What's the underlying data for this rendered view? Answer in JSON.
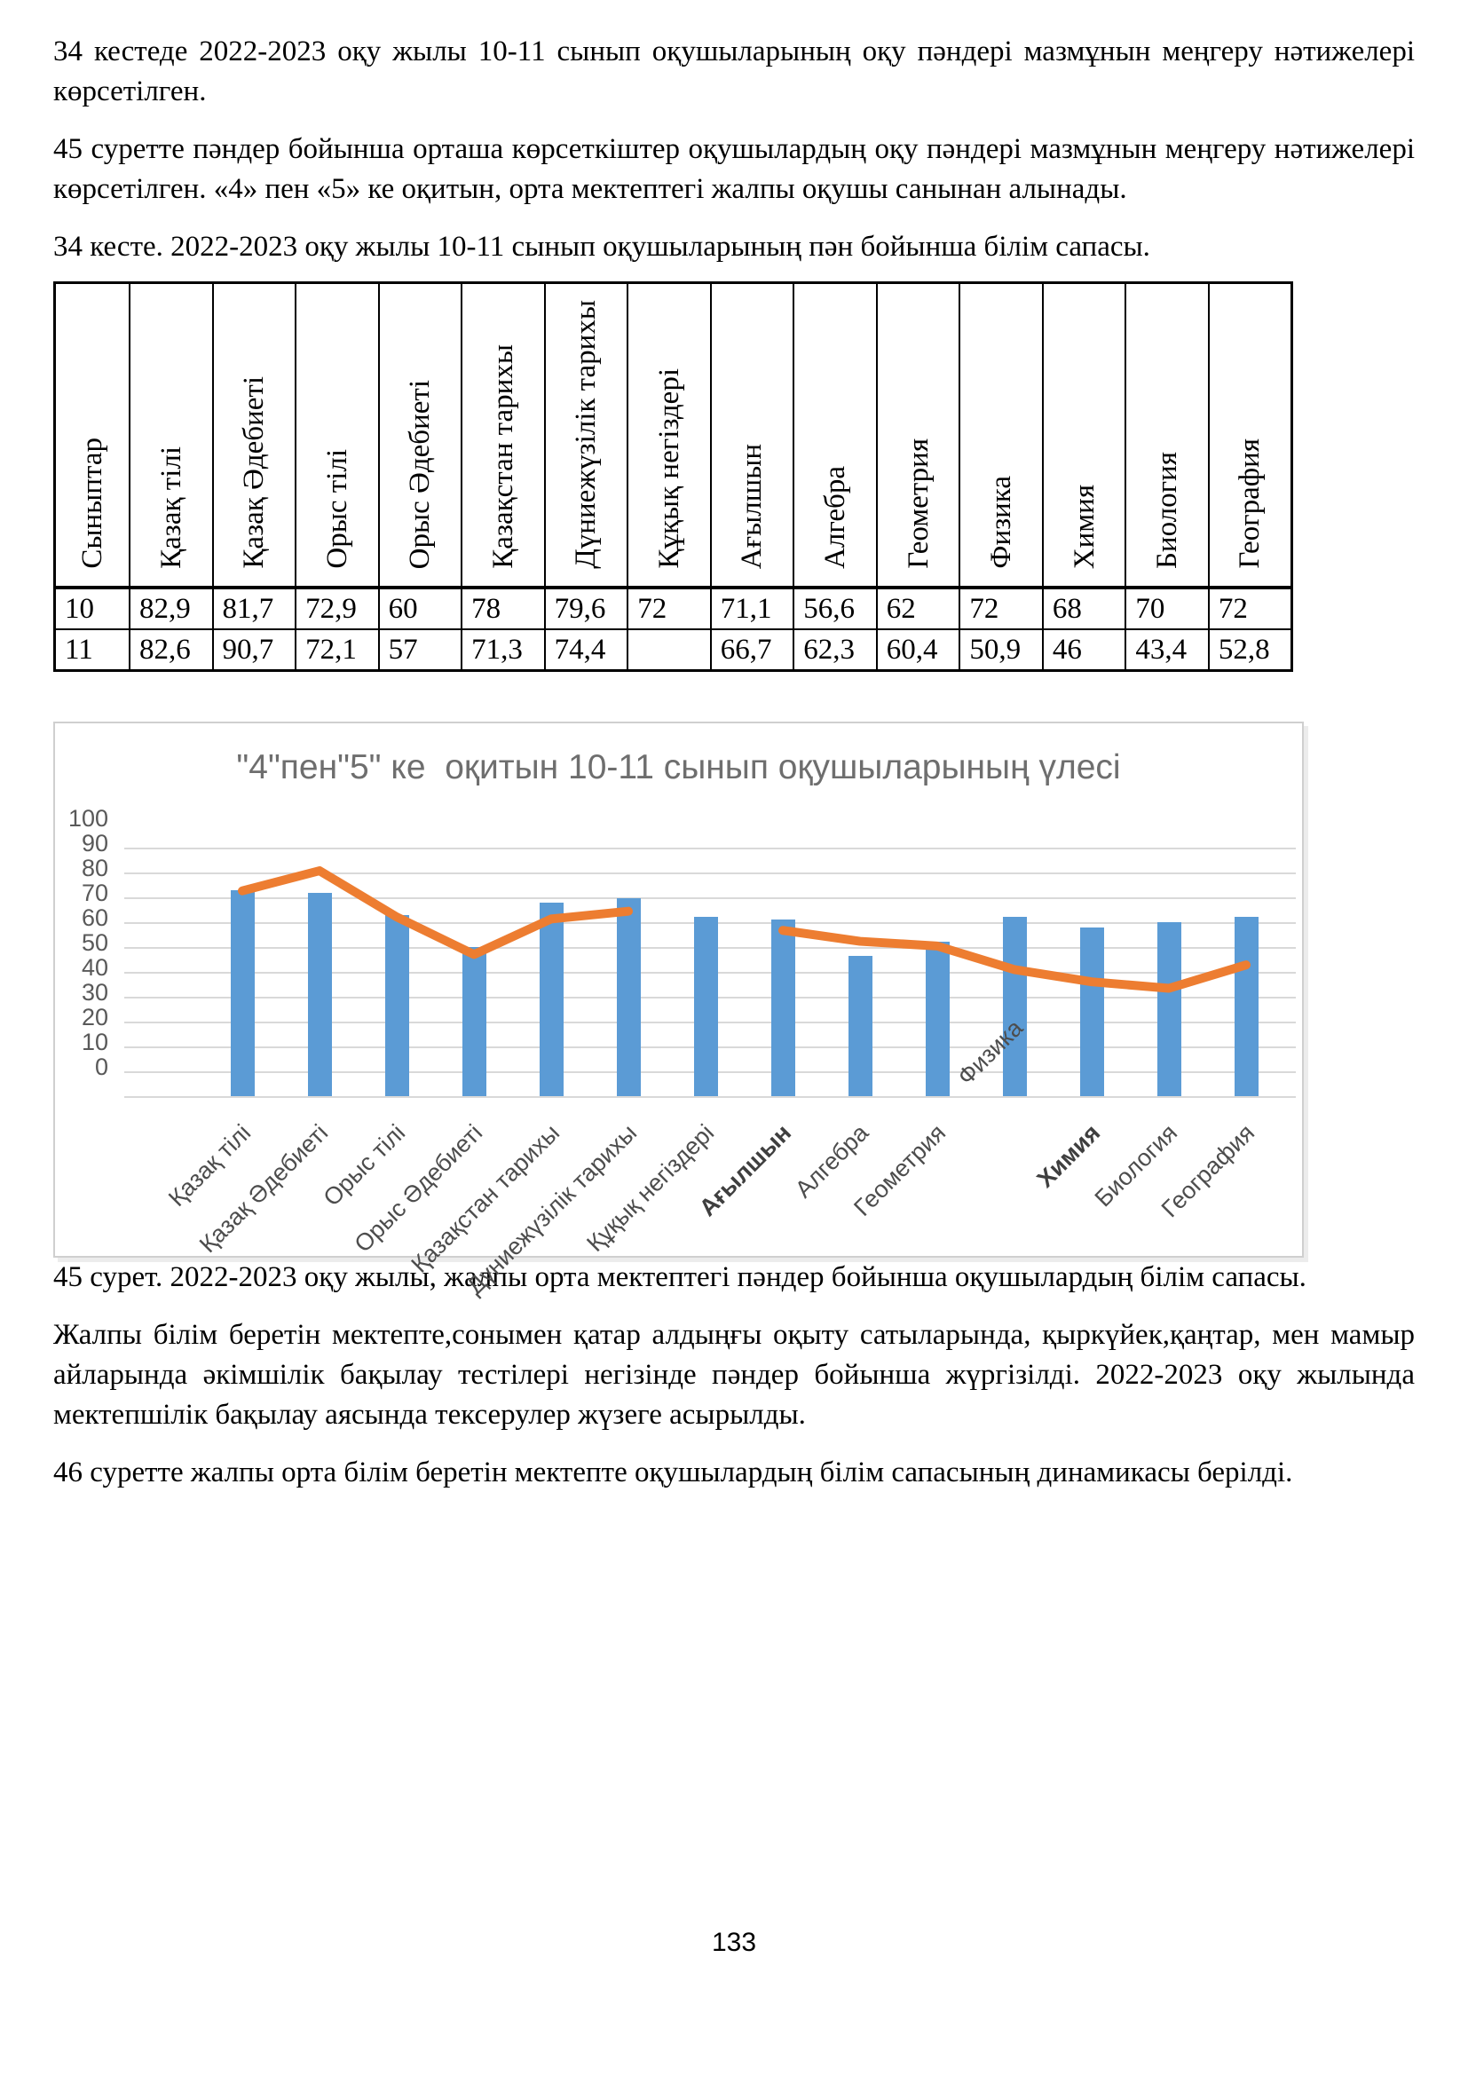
{
  "page": {
    "paragraphs": {
      "intro1": "34 кестеде 2022-2023 оқу жылы 10-11 сынып оқушыларының оқу пәндері мазмұнын меңгеру нәтижелері көрсетілген.",
      "intro2": "45 суретте пәндер бойынша орташа көрсеткіштер оқушылардың оқу пәндері мазмұнын меңгеру нәтижелері көрсетілген. «4» пен «5» ке оқитын, орта мектептегі жалпы оқушы санынан алынады.",
      "table_caption": "34 кесте. 2022-2023 оқу жылы 10-11 сынып оқушыларының пән бойынша білім сапасы.",
      "figure_caption": "45 сурет. 2022-2023 оқу жылы, жалпы орта мектептегі пәндер бойынша оқушылардың білім сапасы.",
      "body2": "Жалпы білім беретін мектепте,сонымен қатар алдыңғы оқыту сатыларында, қыркүйек,қаңтар, мен мамыр айларында әкімшілік бақылау тестілері негізінде пәндер бойынша жүргізілді. 2022-2023 оқу жылында мектепшілік бақылау аясында тексерулер жүзеге асырылды.",
      "body3": "46 суретте жалпы орта білім беретін мектепте оқушылардың білім сапасының динамикасы берілді."
    },
    "page_number": "133"
  },
  "table": {
    "headers": [
      "Сыныптар",
      "Қазақ тілі",
      "Қазақ Әдебиеті",
      "Орыс тілі",
      "Орыс Әдебиеті",
      "Қазақстан тарихы",
      "Дүниежүзілік тарихы",
      "Құқық негіздері",
      "Ағылшын",
      "Алгебра",
      "Геометрия",
      "Физика",
      "Химия",
      "Биология",
      "География"
    ],
    "rows": [
      [
        "10",
        "82,9",
        "81,7",
        "72,9",
        "60",
        "78",
        "79,6",
        "72",
        "71,1",
        "56,6",
        "62",
        "72",
        "68",
        "70",
        "72"
      ],
      [
        "11",
        "82,6",
        "90,7",
        "72,1",
        "57",
        "71,3",
        "74,4",
        "",
        "66,7",
        "62,3",
        "60,4",
        "50,9",
        "46",
        "43,4",
        "52,8"
      ]
    ]
  },
  "chart_data": {
    "type": "bar",
    "title": "\"4\"пен\"5\" ке  оқитын 10-11 сынып оқушыларының үлесі",
    "categories": [
      "Қазақ тілі",
      "Қазақ Әдебиеті",
      "Орыс тілі",
      "Орыс Әдебиеті",
      "Қазақстан тарихы",
      "Дүниежүзілік тарихы",
      "Құқық негіздері",
      "Ағылшын",
      "Алгебра",
      "Геометрия",
      "Физика",
      "Химия",
      "Биология",
      "География"
    ],
    "series": [
      {
        "type": "bar",
        "color": "#5B9BD5",
        "values": [
          82.9,
          81.7,
          72.9,
          60,
          78,
          79.6,
          72,
          71.1,
          56.6,
          62,
          72,
          68,
          70,
          72
        ]
      },
      {
        "type": "line",
        "color": "#ED7D31",
        "values": [
          82.6,
          90.7,
          72.1,
          57,
          71.3,
          74.4,
          null,
          66.7,
          62.3,
          60.4,
          50.9,
          46,
          43.4,
          52.8
        ]
      }
    ],
    "xlabel": "",
    "ylabel": "",
    "ylim": [
      0,
      100
    ],
    "ytick_step": 10,
    "grid": true,
    "legend": "none",
    "gridline_color": "#d9d9d9",
    "bold_category_labels": [
      "Ағылшын",
      "Химия"
    ],
    "raised_category_label": "Физика"
  }
}
